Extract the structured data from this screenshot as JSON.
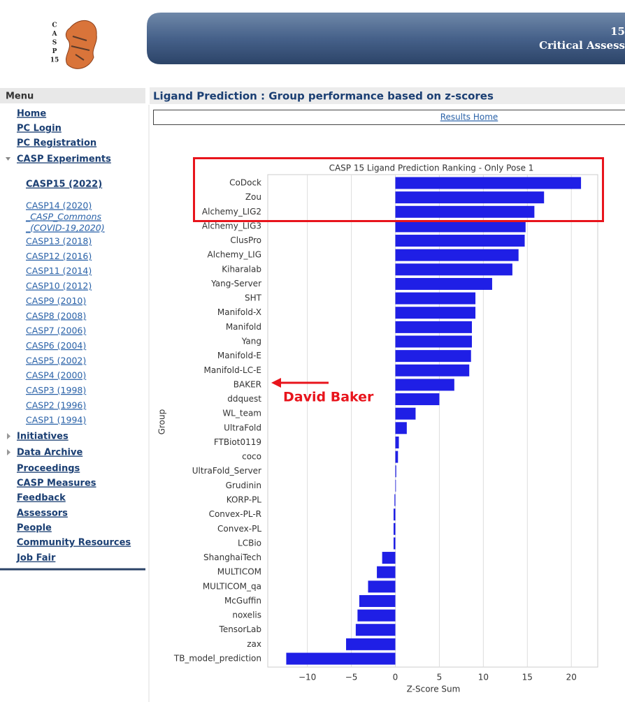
{
  "logo": {
    "letters": [
      "C",
      "A",
      "S",
      "P",
      "15"
    ]
  },
  "header": {
    "number": "15",
    "title": "Critical Assess"
  },
  "menu": {
    "title": "Menu",
    "top_items": [
      "Home",
      "PC Login",
      "PC Registration",
      "CASP Experiments"
    ],
    "current": "CASP15 (2022)",
    "experiments": [
      "CASP14 (2020)",
      "_CASP_Commons",
      "_(COVID-19,2020)",
      "CASP13 (2018)",
      "CASP12 (2016)",
      "CASP11 (2014)",
      "CASP10 (2012)",
      "CASP9 (2010)",
      "CASP8 (2008)",
      "CASP7 (2006)",
      "CASP6 (2004)",
      "CASP5 (2002)",
      "CASP4 (2000)",
      "CASP3 (1998)",
      "CASP2 (1996)",
      "CASP1 (1994)"
    ],
    "bottom_items": [
      "Initiatives",
      "Data Archive",
      "Proceedings",
      "CASP Measures",
      "Feedback",
      "Assessors",
      "People",
      "Community Resources",
      "Job Fair"
    ]
  },
  "content": {
    "title": "Ligand Prediction : Group performance based on z-scores",
    "results_link": "Results Home"
  },
  "chart_data": {
    "type": "bar",
    "orientation": "horizontal",
    "title": "CASP 15 Ligand Prediction Ranking - Only Pose 1",
    "x_label": "Z-Score Sum",
    "y_label": "Group",
    "categories": [
      "CoDock",
      "Zou",
      "Alchemy_LIG2",
      "Alchemy_LIG3",
      "ClusPro",
      "Alchemy_LIG",
      "Kiharalab",
      "Yang-Server",
      "SHT",
      "Manifold-X",
      "Manifold",
      "Yang",
      "Manifold-E",
      "Manifold-LC-E",
      "BAKER",
      "ddquest",
      "WL_team",
      "UltraFold",
      "FTBiot0119",
      "coco",
      "UltraFold_Server",
      "Grudinin",
      "KORP-PL",
      "Convex-PL-R",
      "Convex-PL",
      "LCBio",
      "ShanghaiTech",
      "MULTICOM",
      "MULTICOM_qa",
      "McGuffin",
      "noxelis",
      "TensorLab",
      "zax",
      "TB_model_prediction"
    ],
    "values": [
      21.1,
      16.9,
      15.8,
      14.8,
      14.7,
      14.0,
      13.3,
      11.0,
      9.1,
      9.1,
      8.7,
      8.7,
      8.6,
      8.4,
      6.7,
      5.0,
      2.3,
      1.3,
      0.4,
      0.3,
      0.1,
      0.0,
      -0.1,
      -0.2,
      -0.2,
      -0.2,
      -1.5,
      -2.1,
      -3.1,
      -4.1,
      -4.3,
      -4.5,
      -5.6,
      -12.4
    ],
    "color": "#1f1fe6",
    "xlim": [
      -14.5,
      23
    ],
    "xticks": [
      {
        "value": -10,
        "label": "−10"
      },
      {
        "value": -5,
        "label": "−5"
      },
      0,
      5,
      10,
      15,
      20
    ],
    "grid": true,
    "annotation": "David Baker"
  }
}
